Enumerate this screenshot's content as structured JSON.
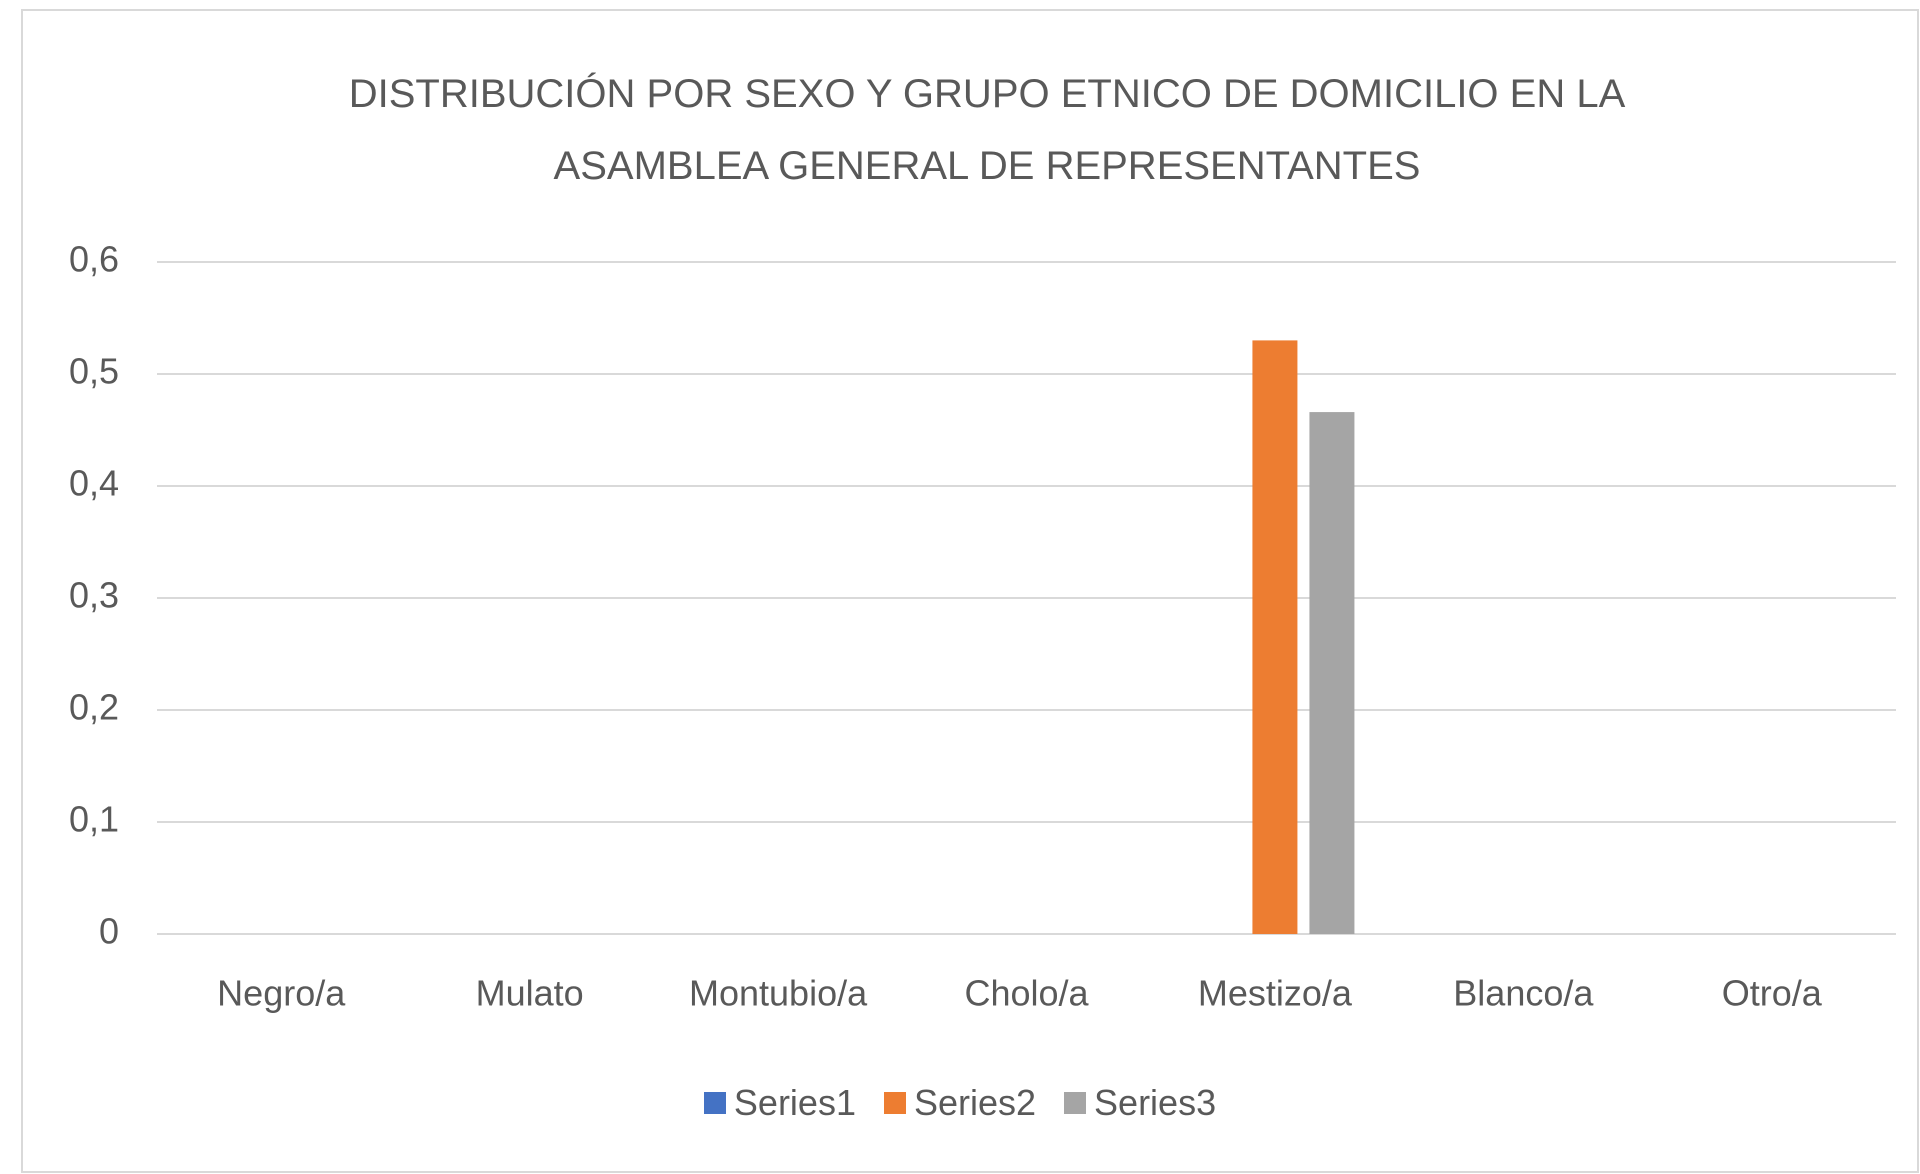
{
  "chart_data": {
    "type": "bar",
    "title": "DISTRIBUCIÓN POR SEXO Y GRUPO ETNICO DE  DOMICILIO EN LA ASAMBLEA GENERAL DE REPRESENTANTES",
    "categories": [
      "Negro/a",
      "Mulato",
      "Montubio/a",
      "Cholo/a",
      "Mestizo/a",
      "Blanco/a",
      "Otro/a"
    ],
    "series": [
      {
        "name": "Series1",
        "color": "#4472c4",
        "values": [
          0,
          0,
          0,
          0,
          0,
          0,
          0
        ]
      },
      {
        "name": "Series2",
        "color": "#ed7d31",
        "values": [
          0,
          0,
          0,
          0,
          0.53,
          0,
          0
        ]
      },
      {
        "name": "Series3",
        "color": "#a5a5a5",
        "values": [
          0,
          0,
          0,
          0,
          0.466,
          0,
          0
        ]
      }
    ],
    "ylim": [
      0,
      0.6
    ],
    "yticks": [
      0,
      {
        "value": 0.1,
        "label": "0,1"
      },
      {
        "value": 0.2,
        "label": "0,2"
      },
      {
        "value": 0.3,
        "label": "0,3"
      },
      {
        "value": 0.4,
        "label": "0,4"
      },
      {
        "value": 0.5,
        "label": "0,5"
      },
      {
        "value": 0.6,
        "label": "0,6"
      }
    ],
    "grid": true,
    "legend": "bottom"
  }
}
